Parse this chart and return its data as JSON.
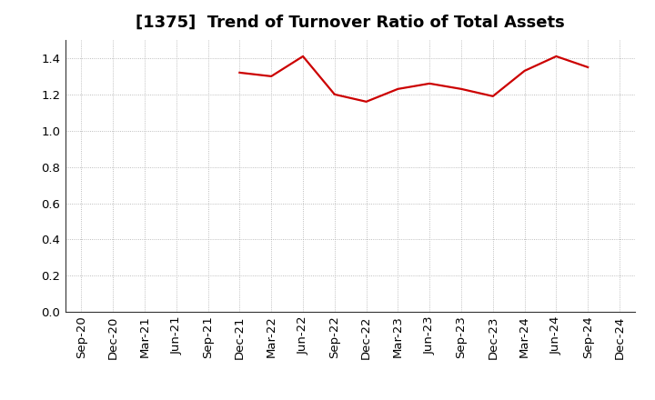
{
  "title": "[1375]  Trend of Turnover Ratio of Total Assets",
  "x_labels": [
    "Sep-20",
    "Dec-20",
    "Mar-21",
    "Jun-21",
    "Sep-21",
    "Dec-21",
    "Mar-22",
    "Jun-22",
    "Sep-22",
    "Dec-22",
    "Mar-23",
    "Jun-23",
    "Sep-23",
    "Dec-23",
    "Mar-24",
    "Jun-24",
    "Sep-24",
    "Dec-24"
  ],
  "y_values": [
    null,
    null,
    null,
    null,
    null,
    1.32,
    1.3,
    1.41,
    1.2,
    1.16,
    1.23,
    1.26,
    1.23,
    1.19,
    1.33,
    1.41,
    1.35,
    null
  ],
  "line_color": "#cc0000",
  "line_width": 1.6,
  "ylim": [
    0.0,
    1.5
  ],
  "yticks": [
    0.0,
    0.2,
    0.4,
    0.6,
    0.8,
    1.0,
    1.2,
    1.4
  ],
  "background_color": "#ffffff",
  "grid_color": "#aaaaaa",
  "title_fontsize": 13,
  "tick_fontsize": 9.5
}
